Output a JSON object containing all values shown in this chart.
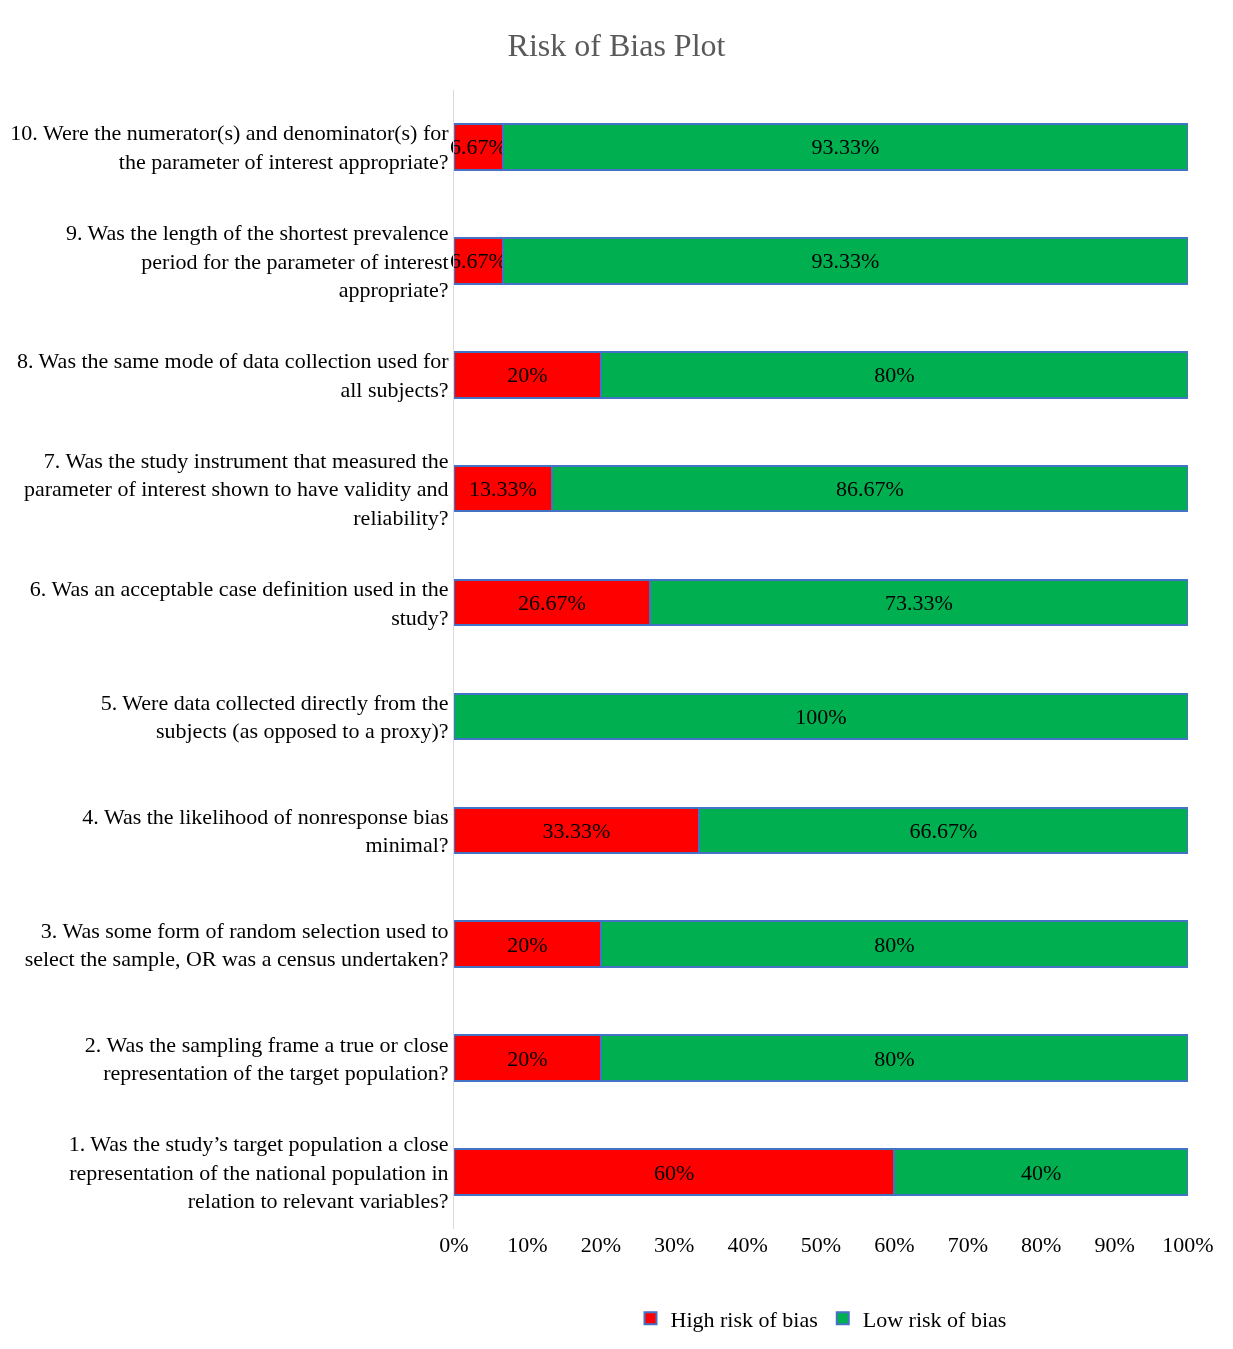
{
  "chart_data": {
    "type": "bar",
    "orientation": "horizontal",
    "stacked": true,
    "title": "Risk of Bias Plot",
    "categories": [
      "10. Were the numerator(s) and denominator(s) for the parameter of interest appropriate?",
      "9. Was the length of the shortest prevalence period for the parameter of interest appropriate?",
      "8. Was the same mode of data collection used for all subjects?",
      "7. Was the study instrument that measured the parameter of interest shown to have validity and reliability?",
      "6. Was an acceptable case definition used in the study?",
      "5. Were data collected directly from the subjects (as opposed to a proxy)?",
      "4. Was the likelihood of nonresponse bias minimal?",
      "3. Was some form of random selection used to select the sample, OR was a census undertaken?",
      "2. Was the sampling frame a true or close representation of the target population?",
      "1. Was the study’s target population a close representation of the national population in relation to relevant variables?"
    ],
    "series": [
      {
        "name": "High risk of bias",
        "color": "#ff0000",
        "values": [
          6.67,
          6.67,
          20,
          13.33,
          26.67,
          0,
          33.33,
          20,
          20,
          60
        ],
        "value_labels": [
          "6.67%",
          "6.67%",
          "20%",
          "13.33%",
          "26.67%",
          null,
          "33.33%",
          "20%",
          "20%",
          "60%"
        ]
      },
      {
        "name": "Low risk of bias",
        "color": "#00b050",
        "values": [
          93.33,
          93.33,
          80,
          86.67,
          73.33,
          100,
          66.67,
          80,
          80,
          40
        ],
        "value_labels": [
          "93.33%",
          "93.33%",
          "80%",
          "86.67%",
          "73.33%",
          "100%",
          "66.67%",
          "80%",
          "80%",
          "40%"
        ]
      }
    ],
    "xlim": [
      0,
      100
    ],
    "xticks": [
      {
        "value": 0,
        "label": "0%"
      },
      {
        "value": 10,
        "label": "10%"
      },
      {
        "value": 20,
        "label": "20%"
      },
      {
        "value": 30,
        "label": "30%"
      },
      {
        "value": 40,
        "label": "40%"
      },
      {
        "value": 50,
        "label": "50%"
      },
      {
        "value": 60,
        "label": "60%"
      },
      {
        "value": 70,
        "label": "70%"
      },
      {
        "value": 80,
        "label": "80%"
      },
      {
        "value": 90,
        "label": "90%"
      },
      {
        "value": 100,
        "label": "100%"
      }
    ],
    "grid": false,
    "legend": "bottom"
  }
}
